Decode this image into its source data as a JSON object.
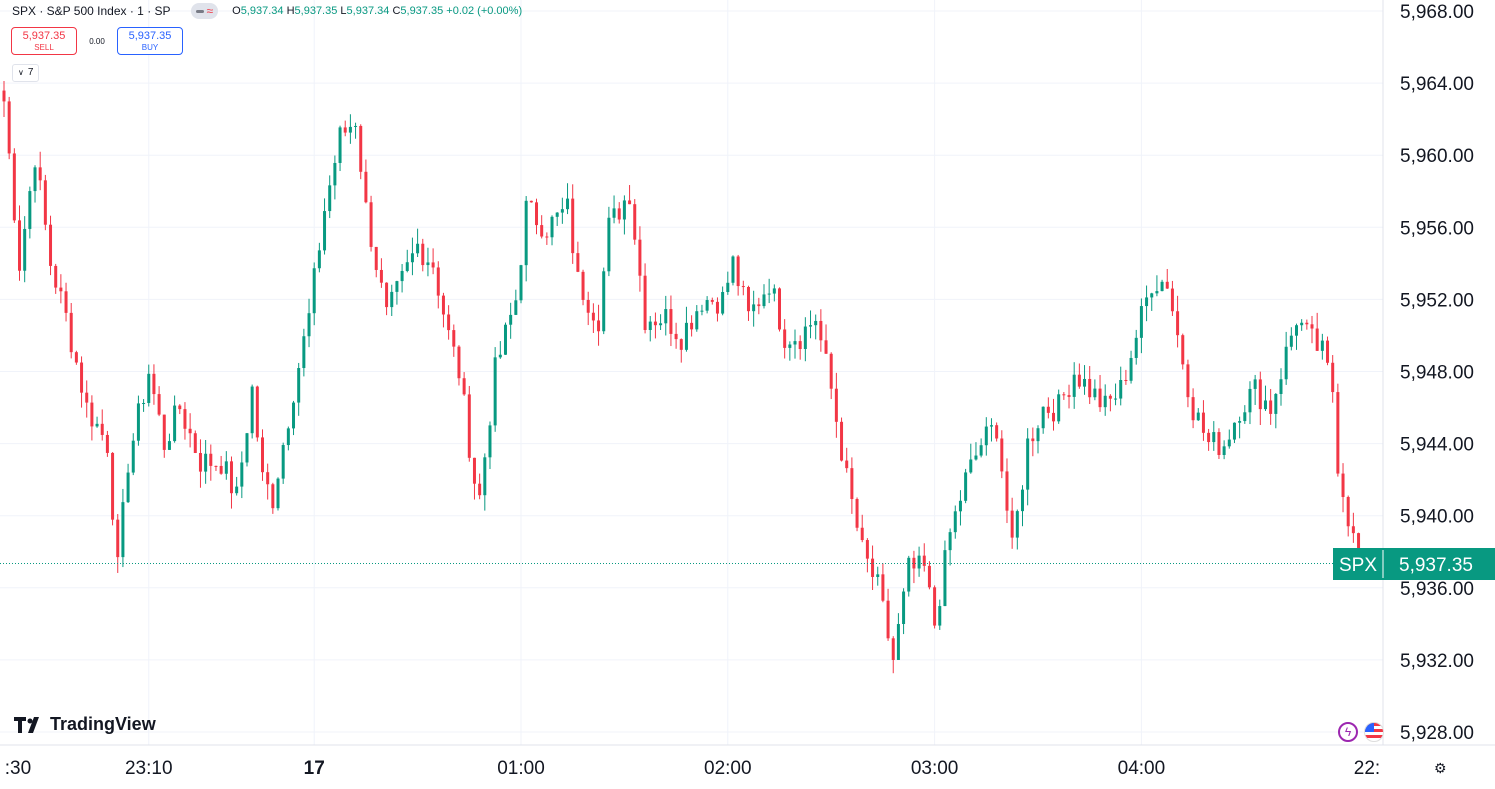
{
  "header": {
    "symbol": "SPX · S&P 500 Index · 1 · SP",
    "ohlc": {
      "o": "5,937.34",
      "h": "5,937.35",
      "l": "5,937.34",
      "c": "5,937.35",
      "change": "+0.02 (+0.00%)"
    }
  },
  "trade": {
    "sell_price": "5,937.35",
    "sell_label": "SELL",
    "spread": "0.00",
    "buy_price": "5,937.35",
    "buy_label": "BUY"
  },
  "indicators_collapse": "7",
  "brand": "TradingView",
  "colors": {
    "up": "#089981",
    "down": "#f23645",
    "grid": "#f0f3fa",
    "last_price": "#089981"
  },
  "chart_data": {
    "type": "candlestick",
    "y_range": [
      5926,
      5970
    ],
    "y_ticks": [
      {
        "v": 5968,
        "label": "5,968.00"
      },
      {
        "v": 5964,
        "label": "5,964.00"
      },
      {
        "v": 5960,
        "label": "5,960.00"
      },
      {
        "v": 5956,
        "label": "5,956.00"
      },
      {
        "v": 5952,
        "label": "5,952.00"
      },
      {
        "v": 5948,
        "label": "5,948.00"
      },
      {
        "v": 5944,
        "label": "5,944.00"
      },
      {
        "v": 5940,
        "label": "5,940.00"
      },
      {
        "v": 5936,
        "label": "5,936.00"
      },
      {
        "v": 5932,
        "label": "5,932.00"
      },
      {
        "v": 5928,
        "label": "5,928.00"
      }
    ],
    "x_ticks": [
      {
        "i": 0,
        "label": ":30",
        "bold": false
      },
      {
        "i": 28,
        "label": "23:10",
        "bold": false
      },
      {
        "i": 60,
        "label": "17",
        "bold": true
      },
      {
        "i": 100,
        "label": "01:00",
        "bold": false
      },
      {
        "i": 140,
        "label": "02:00",
        "bold": false
      },
      {
        "i": 180,
        "label": "03:00",
        "bold": false
      },
      {
        "i": 220,
        "label": "04:00",
        "bold": false
      },
      {
        "i": 262,
        "label": "22:",
        "bold": false
      }
    ],
    "last_price": {
      "symbol": "SPX",
      "value": 5937.35,
      "label": "5,937.35"
    },
    "anchors": [
      [
        0,
        5963
      ],
      [
        3,
        5954
      ],
      [
        6,
        5960
      ],
      [
        9,
        5954
      ],
      [
        12,
        5951
      ],
      [
        16,
        5946
      ],
      [
        20,
        5944
      ],
      [
        22,
        5937
      ],
      [
        24,
        5943
      ],
      [
        28,
        5948
      ],
      [
        31,
        5944
      ],
      [
        34,
        5946
      ],
      [
        38,
        5943
      ],
      [
        42,
        5943
      ],
      [
        45,
        5941
      ],
      [
        48,
        5947
      ],
      [
        50,
        5942
      ],
      [
        52,
        5941
      ],
      [
        56,
        5947
      ],
      [
        59,
        5951
      ],
      [
        62,
        5957
      ],
      [
        65,
        5961
      ],
      [
        68,
        5962
      ],
      [
        70,
        5957
      ],
      [
        74,
        5951
      ],
      [
        77,
        5953
      ],
      [
        80,
        5955
      ],
      [
        83,
        5954
      ],
      [
        86,
        5950
      ],
      [
        88,
        5948
      ],
      [
        91,
        5942
      ],
      [
        92,
        5941
      ],
      [
        95,
        5948
      ],
      [
        99,
        5952
      ],
      [
        101,
        5957
      ],
      [
        105,
        5956
      ],
      [
        109,
        5957
      ],
      [
        111,
        5953
      ],
      [
        115,
        5951
      ],
      [
        117,
        5956
      ],
      [
        121,
        5958
      ],
      [
        124,
        5951
      ],
      [
        128,
        5951
      ],
      [
        131,
        5950
      ],
      [
        135,
        5952
      ],
      [
        139,
        5952
      ],
      [
        141,
        5954
      ],
      [
        144,
        5951
      ],
      [
        148,
        5953
      ],
      [
        151,
        5950
      ],
      [
        154,
        5950
      ],
      [
        157,
        5951
      ],
      [
        160,
        5947
      ],
      [
        163,
        5942
      ],
      [
        166,
        5938
      ],
      [
        169,
        5936
      ],
      [
        172,
        5932
      ],
      [
        175,
        5937
      ],
      [
        178,
        5937
      ],
      [
        180,
        5934
      ],
      [
        183,
        5939
      ],
      [
        186,
        5942
      ],
      [
        189,
        5944
      ],
      [
        192,
        5945
      ],
      [
        195,
        5938
      ],
      [
        198,
        5944
      ],
      [
        201,
        5946
      ],
      [
        204,
        5946
      ],
      [
        207,
        5948
      ],
      [
        210,
        5947
      ],
      [
        213,
        5946
      ],
      [
        216,
        5947
      ],
      [
        219,
        5950
      ],
      [
        222,
        5953
      ],
      [
        225,
        5953
      ],
      [
        227,
        5950
      ],
      [
        230,
        5946
      ],
      [
        233,
        5944
      ],
      [
        236,
        5944
      ],
      [
        239,
        5946
      ],
      [
        242,
        5947
      ],
      [
        245,
        5946
      ],
      [
        248,
        5949
      ],
      [
        250,
        5951
      ],
      [
        252,
        5950
      ],
      [
        255,
        5949
      ],
      [
        257,
        5947
      ],
      [
        258,
        5943
      ],
      [
        260,
        5940
      ],
      [
        262,
        5937.35
      ]
    ]
  }
}
